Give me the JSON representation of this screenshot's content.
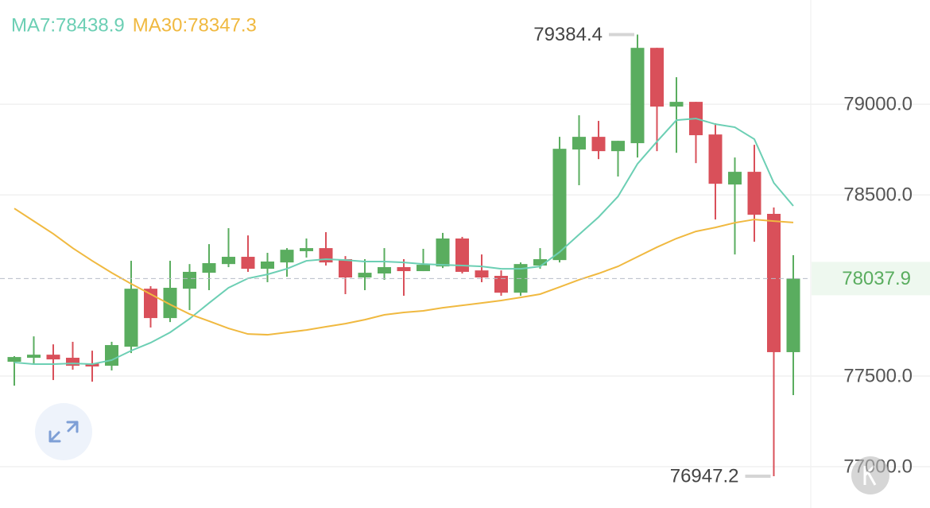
{
  "chart_data": {
    "type": "candlestick",
    "up_color": "#5aad5f",
    "down_color": "#d9505a",
    "grid": true,
    "ylim": [
      76772,
      79575
    ],
    "yticks": [
      {
        "value": 77000,
        "label": "77000.0"
      },
      {
        "value": 77500,
        "label": "77500.0"
      },
      {
        "value": 78500,
        "label": "78500.0"
      },
      {
        "value": 79000,
        "label": "79000.0"
      }
    ],
    "open": [
      77579,
      77601,
      77618,
      77601,
      77570,
      77557,
      77662,
      77982,
      77820,
      77982,
      78070,
      78118,
      78158,
      78092,
      78127,
      78189,
      78206,
      78145,
      78044,
      78066,
      78101,
      78079,
      78105,
      78259,
      78083,
      78053,
      77960,
      78110,
      78140,
      78750,
      78820,
      78741,
      78785,
      79311,
      78987,
      79013,
      78833,
      78557,
      78627,
      78395,
      77632
    ],
    "high": [
      77610,
      77719,
      77675,
      77689,
      77640,
      77689,
      78136,
      77996,
      78136,
      78118,
      78228,
      78316,
      78276,
      78180,
      78206,
      78259,
      78294,
      78162,
      78145,
      78206,
      78145,
      78202,
      78290,
      78268,
      78171,
      78083,
      78127,
      78206,
      78820,
      78939,
      78908,
      78798,
      79384.4,
      79311,
      79149,
      79013,
      78895,
      78706,
      78776,
      78430,
      78167
    ],
    "low": [
      77447,
      77566,
      77478,
      77535,
      77469,
      77531,
      77627,
      77768,
      77798,
      77864,
      77974,
      78101,
      78075,
      78018,
      78048,
      78154,
      78110,
      77952,
      77974,
      78031,
      77943,
      78079,
      78096,
      78066,
      78018,
      77943,
      77943,
      78092,
      78127,
      78553,
      78697,
      78601,
      78706,
      78741,
      78732,
      78675,
      78364,
      78171,
      78241,
      76947.2,
      77395
    ],
    "close": [
      77605,
      77618,
      77592,
      77557,
      77553,
      77671,
      77982,
      77820,
      77987,
      78075,
      78123,
      78158,
      78092,
      78132,
      78197,
      78206,
      78127,
      78044,
      78070,
      78101,
      78079,
      78114,
      78259,
      78075,
      78044,
      77960,
      78118,
      78145,
      78754,
      78820,
      78741,
      78798,
      79311,
      78987,
      79013,
      78829,
      78561,
      78627,
      78390,
      77632,
      78037.9
    ],
    "series": [
      {
        "name": "MA7",
        "label": "MA7:78438.9",
        "color": "#6ccfb4",
        "values": [
          77575,
          77566,
          77566,
          77570,
          77566,
          77588,
          77640,
          77684,
          77741,
          77816,
          77903,
          77987,
          78039,
          78061,
          78092,
          78136,
          78145,
          78140,
          78132,
          78132,
          78127,
          78118,
          78114,
          78110,
          78105,
          78092,
          78092,
          78105,
          78184,
          78281,
          78377,
          78491,
          78671,
          78794,
          78912,
          78921,
          78890,
          78873,
          78807,
          78566,
          78438.9
        ]
      },
      {
        "name": "MA30",
        "label": "MA30:78347.3",
        "color": "#f0b940",
        "values": [
          78425,
          78355,
          78285,
          78206,
          78136,
          78070,
          78009,
          77952,
          77895,
          77842,
          77803,
          77763,
          77732,
          77728,
          77741,
          77754,
          77772,
          77789,
          77811,
          77838,
          77851,
          77860,
          77877,
          77890,
          77903,
          77917,
          77934,
          77952,
          77991,
          78031,
          78066,
          78105,
          78158,
          78211,
          78259,
          78298,
          78320,
          78346,
          78364,
          78355,
          78347.3
        ]
      }
    ]
  }
}
